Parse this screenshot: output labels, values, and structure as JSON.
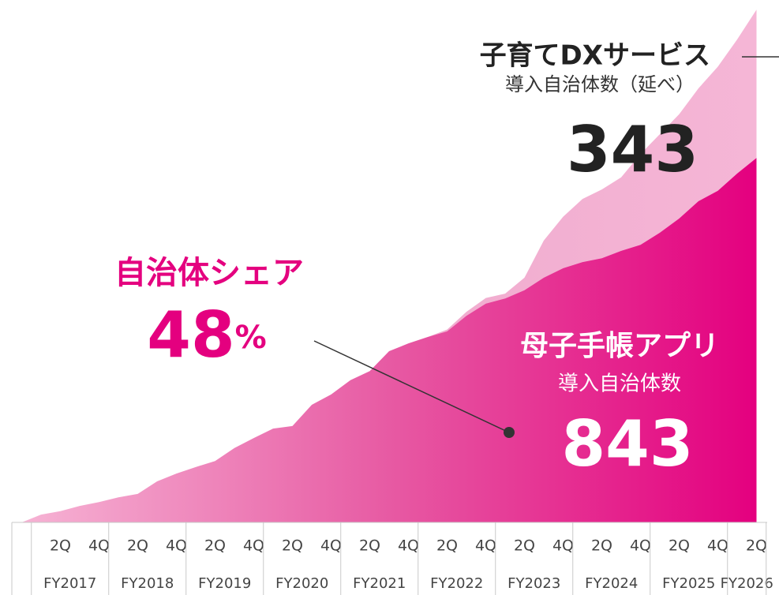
{
  "chart_data": {
    "type": "stacked_area",
    "categories": [
      null,
      null,
      "2Q",
      null,
      "4Q",
      null,
      "2Q",
      null,
      "4Q",
      null,
      "2Q",
      null,
      "4Q",
      null,
      "2Q",
      null,
      "4Q",
      null,
      "2Q",
      null,
      "4Q",
      null,
      "2Q",
      null,
      "4Q",
      null,
      "2Q",
      null,
      "4Q",
      null,
      "2Q",
      null,
      "4Q",
      null,
      "2Q",
      null,
      "4Q",
      null,
      "2Q"
    ],
    "groups": [
      "FY2017",
      "FY2018",
      "FY2019",
      "FY2020",
      "FY2021",
      "FY2022",
      "FY2023",
      "FY2024",
      "FY2025",
      "FY2026"
    ],
    "series": [
      {
        "name": "母子手帳アプリ",
        "subtitle": "導入自治体数",
        "color": "#e4007f",
        "values": [
          0,
          18,
          26,
          38,
          47,
          58,
          66,
          95,
          113,
          128,
          142,
          172,
          195,
          217,
          223,
          272,
          296,
          329,
          350,
          396,
          414,
          429,
          442,
          478,
          506,
          518,
          537,
          566,
          588,
          602,
          611,
          628,
          642,
          670,
          703,
          743,
          767,
          807,
          843
        ]
      },
      {
        "name": "子育てDXサービス",
        "subtitle": "導入自治体数（延べ）",
        "color": "#f2a9cf",
        "values": [
          0,
          0,
          0,
          0,
          0,
          0,
          0,
          0,
          0,
          0,
          0,
          0,
          0,
          0,
          0,
          0,
          0,
          0,
          0,
          0,
          0,
          0,
          4,
          9,
          13,
          11,
          29,
          86,
          119,
          146,
          159,
          170,
          210,
          228,
          241,
          261,
          287,
          310,
          343
        ]
      }
    ],
    "ylim": [
      0,
      1190
    ],
    "annotation": {
      "label": "自治体シェア",
      "value": 48,
      "unit": "%"
    }
  }
}
